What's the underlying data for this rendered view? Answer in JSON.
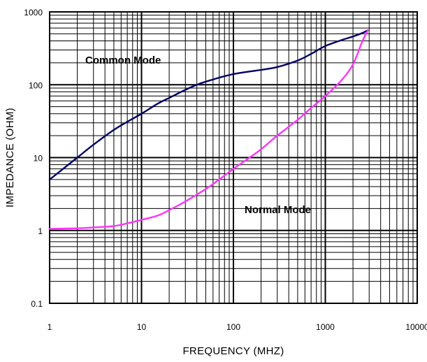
{
  "chart_data": {
    "type": "line",
    "title": "",
    "xlabel": "FREQUENCY (MHZ)",
    "ylabel": "IMPEDANCE (OHM)",
    "x_scale": "log",
    "y_scale": "log",
    "xlim": [
      1,
      10000
    ],
    "ylim": [
      0.1,
      1000
    ],
    "x_ticks": [
      "1",
      "10",
      "100",
      "1000",
      "10000"
    ],
    "y_ticks": [
      "0.1",
      "1",
      "10",
      "100",
      "1000"
    ],
    "grid": true,
    "series": [
      {
        "name": "Common Mode",
        "color": "#000066",
        "x": [
          1,
          1.5,
          2,
          3,
          5,
          7,
          10,
          15,
          20,
          30,
          40,
          50,
          70,
          100,
          150,
          200,
          300,
          500,
          700,
          1000,
          1500,
          2000,
          2500,
          2900
        ],
        "y": [
          5,
          7.5,
          10,
          15,
          24,
          31,
          40,
          55,
          66,
          85,
          100,
          110,
          125,
          140,
          152,
          160,
          175,
          215,
          265,
          340,
          410,
          460,
          510,
          560
        ]
      },
      {
        "name": "Normal Mode",
        "color": "#ff33ff",
        "x": [
          1,
          2,
          3,
          5,
          7,
          10,
          15,
          20,
          30,
          50,
          70,
          100,
          150,
          200,
          300,
          500,
          700,
          1000,
          1500,
          2000,
          2500,
          2900
        ],
        "y": [
          1.05,
          1.07,
          1.1,
          1.15,
          1.25,
          1.4,
          1.6,
          1.9,
          2.5,
          3.7,
          5,
          7,
          10,
          13,
          20,
          33,
          48,
          70,
          115,
          190,
          380,
          560
        ]
      }
    ],
    "annotations": [
      {
        "text": "Common Mode",
        "series": "Common Mode"
      },
      {
        "text": "Normal Mode",
        "series": "Normal Mode"
      }
    ]
  }
}
